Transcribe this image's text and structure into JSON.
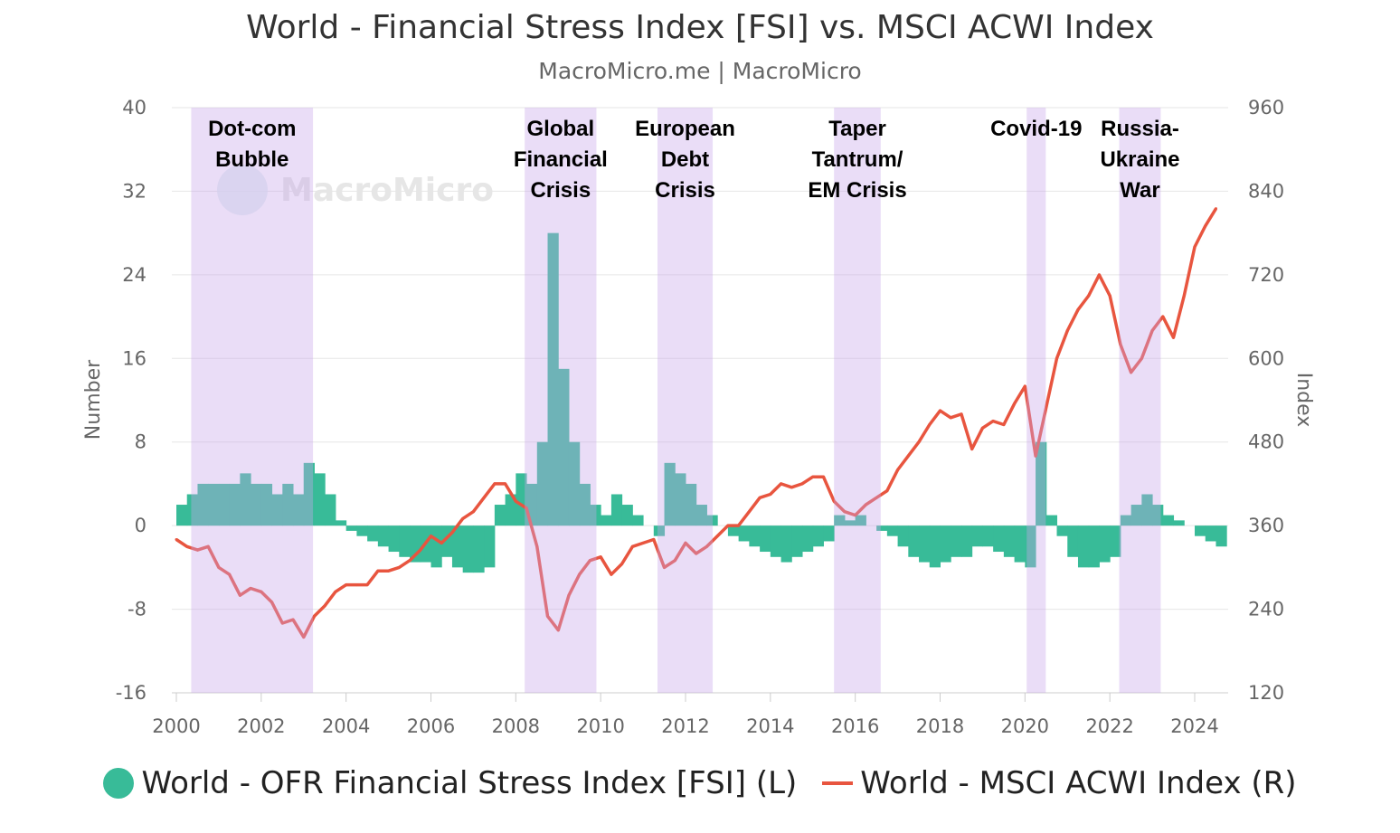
{
  "title": "World - Financial Stress Index [FSI] vs. MSCI ACWI Index",
  "subtitle": "MacroMicro.me | MacroMicro",
  "watermark": "MacroMicro",
  "chart_data": {
    "type": "area+line",
    "xlabel": "",
    "ylabel_left": "Number",
    "ylabel_right": "Index",
    "xlim": [
      2000,
      2024.6
    ],
    "ylim_left": [
      -16,
      40
    ],
    "ylim_right": [
      120,
      960
    ],
    "x_ticks": [
      "2000",
      "2002",
      "2004",
      "2006",
      "2008",
      "2010",
      "2012",
      "2014",
      "2016",
      "2018",
      "2020",
      "2022",
      "2024"
    ],
    "y_ticks_left": [
      "40",
      "32",
      "24",
      "16",
      "8",
      "0",
      "-8",
      "-16"
    ],
    "y_ticks_right": [
      "960",
      "840",
      "720",
      "600",
      "480",
      "360",
      "240",
      "120"
    ],
    "grid": true,
    "legend_position": "bottom",
    "x_start": 2000,
    "x_step": 0.25,
    "series": [
      {
        "name": "World - OFR Financial Stress Index [FSI] (L)",
        "type": "area",
        "axis": "left",
        "color": "#38bb98",
        "values": [
          2,
          3,
          4,
          4,
          4,
          4,
          5,
          4,
          4,
          3,
          4,
          3,
          6,
          5,
          3,
          0.5,
          -0.5,
          -1,
          -1.5,
          -2,
          -2.5,
          -3,
          -3.5,
          -3.5,
          -4,
          -3,
          -4,
          -4.5,
          -4.5,
          -4,
          2,
          3,
          5,
          4,
          8,
          28,
          15,
          8,
          4,
          2,
          1,
          3,
          2,
          1,
          0,
          -1,
          6,
          5,
          4,
          2,
          1,
          0,
          -1,
          -1.5,
          -2,
          -2.5,
          -3,
          -3.5,
          -3,
          -2.5,
          -2,
          -1.5,
          1,
          0.5,
          1,
          0,
          -0.5,
          -1,
          -2,
          -3,
          -3.5,
          -4,
          -3.5,
          -3,
          -3,
          -2,
          -2,
          -2.5,
          -3,
          -3.5,
          -4,
          8,
          1,
          -1,
          -3,
          -4,
          -4,
          -3.5,
          -3,
          1,
          2,
          3,
          2,
          1,
          0.5,
          0,
          -1,
          -1.5,
          -2
        ]
      },
      {
        "name": "World - MSCI ACWI Index (R)",
        "type": "line",
        "axis": "right",
        "color": "#e8553f",
        "values": [
          340,
          330,
          325,
          330,
          300,
          290,
          260,
          270,
          265,
          250,
          220,
          225,
          200,
          230,
          245,
          265,
          275,
          275,
          275,
          295,
          295,
          300,
          310,
          325,
          345,
          335,
          350,
          370,
          380,
          400,
          420,
          420,
          395,
          385,
          330,
          230,
          210,
          260,
          290,
          310,
          315,
          290,
          305,
          330,
          335,
          340,
          300,
          310,
          335,
          320,
          330,
          345,
          360,
          360,
          380,
          400,
          405,
          420,
          415,
          420,
          430,
          430,
          395,
          380,
          375,
          390,
          400,
          410,
          440,
          460,
          480,
          505,
          525,
          515,
          520,
          470,
          500,
          510,
          505,
          535,
          560,
          460,
          530,
          600,
          640,
          670,
          690,
          720,
          690,
          620,
          580,
          600,
          640,
          660,
          630,
          690,
          760,
          790,
          815
        ]
      }
    ],
    "annotations": [
      {
        "label": [
          "Dot-com",
          "Bubble"
        ],
        "start": 2000.35,
        "end": 2003.22
      },
      {
        "label": [
          "Global",
          "Financial",
          "Crisis"
        ],
        "start": 2008.21,
        "end": 2009.9
      },
      {
        "label": [
          "European",
          "Debt",
          "Crisis"
        ],
        "start": 2011.34,
        "end": 2012.64
      },
      {
        "label": [
          "Taper",
          "Tantrum/",
          "EM Crisis"
        ],
        "start": 2015.5,
        "end": 2016.6
      },
      {
        "label": [
          "Covid-19"
        ],
        "start": 2020.04,
        "end": 2020.49
      },
      {
        "label": [
          "Russia-",
          "Ukraine",
          "War"
        ],
        "start": 2022.22,
        "end": 2023.2
      }
    ]
  },
  "legend": [
    {
      "label": "World - OFR Financial Stress Index [FSI] (L)",
      "color": "#38bb98"
    },
    {
      "label": "World - MSCI ACWI Index (R)",
      "color": "#e8553f"
    }
  ]
}
